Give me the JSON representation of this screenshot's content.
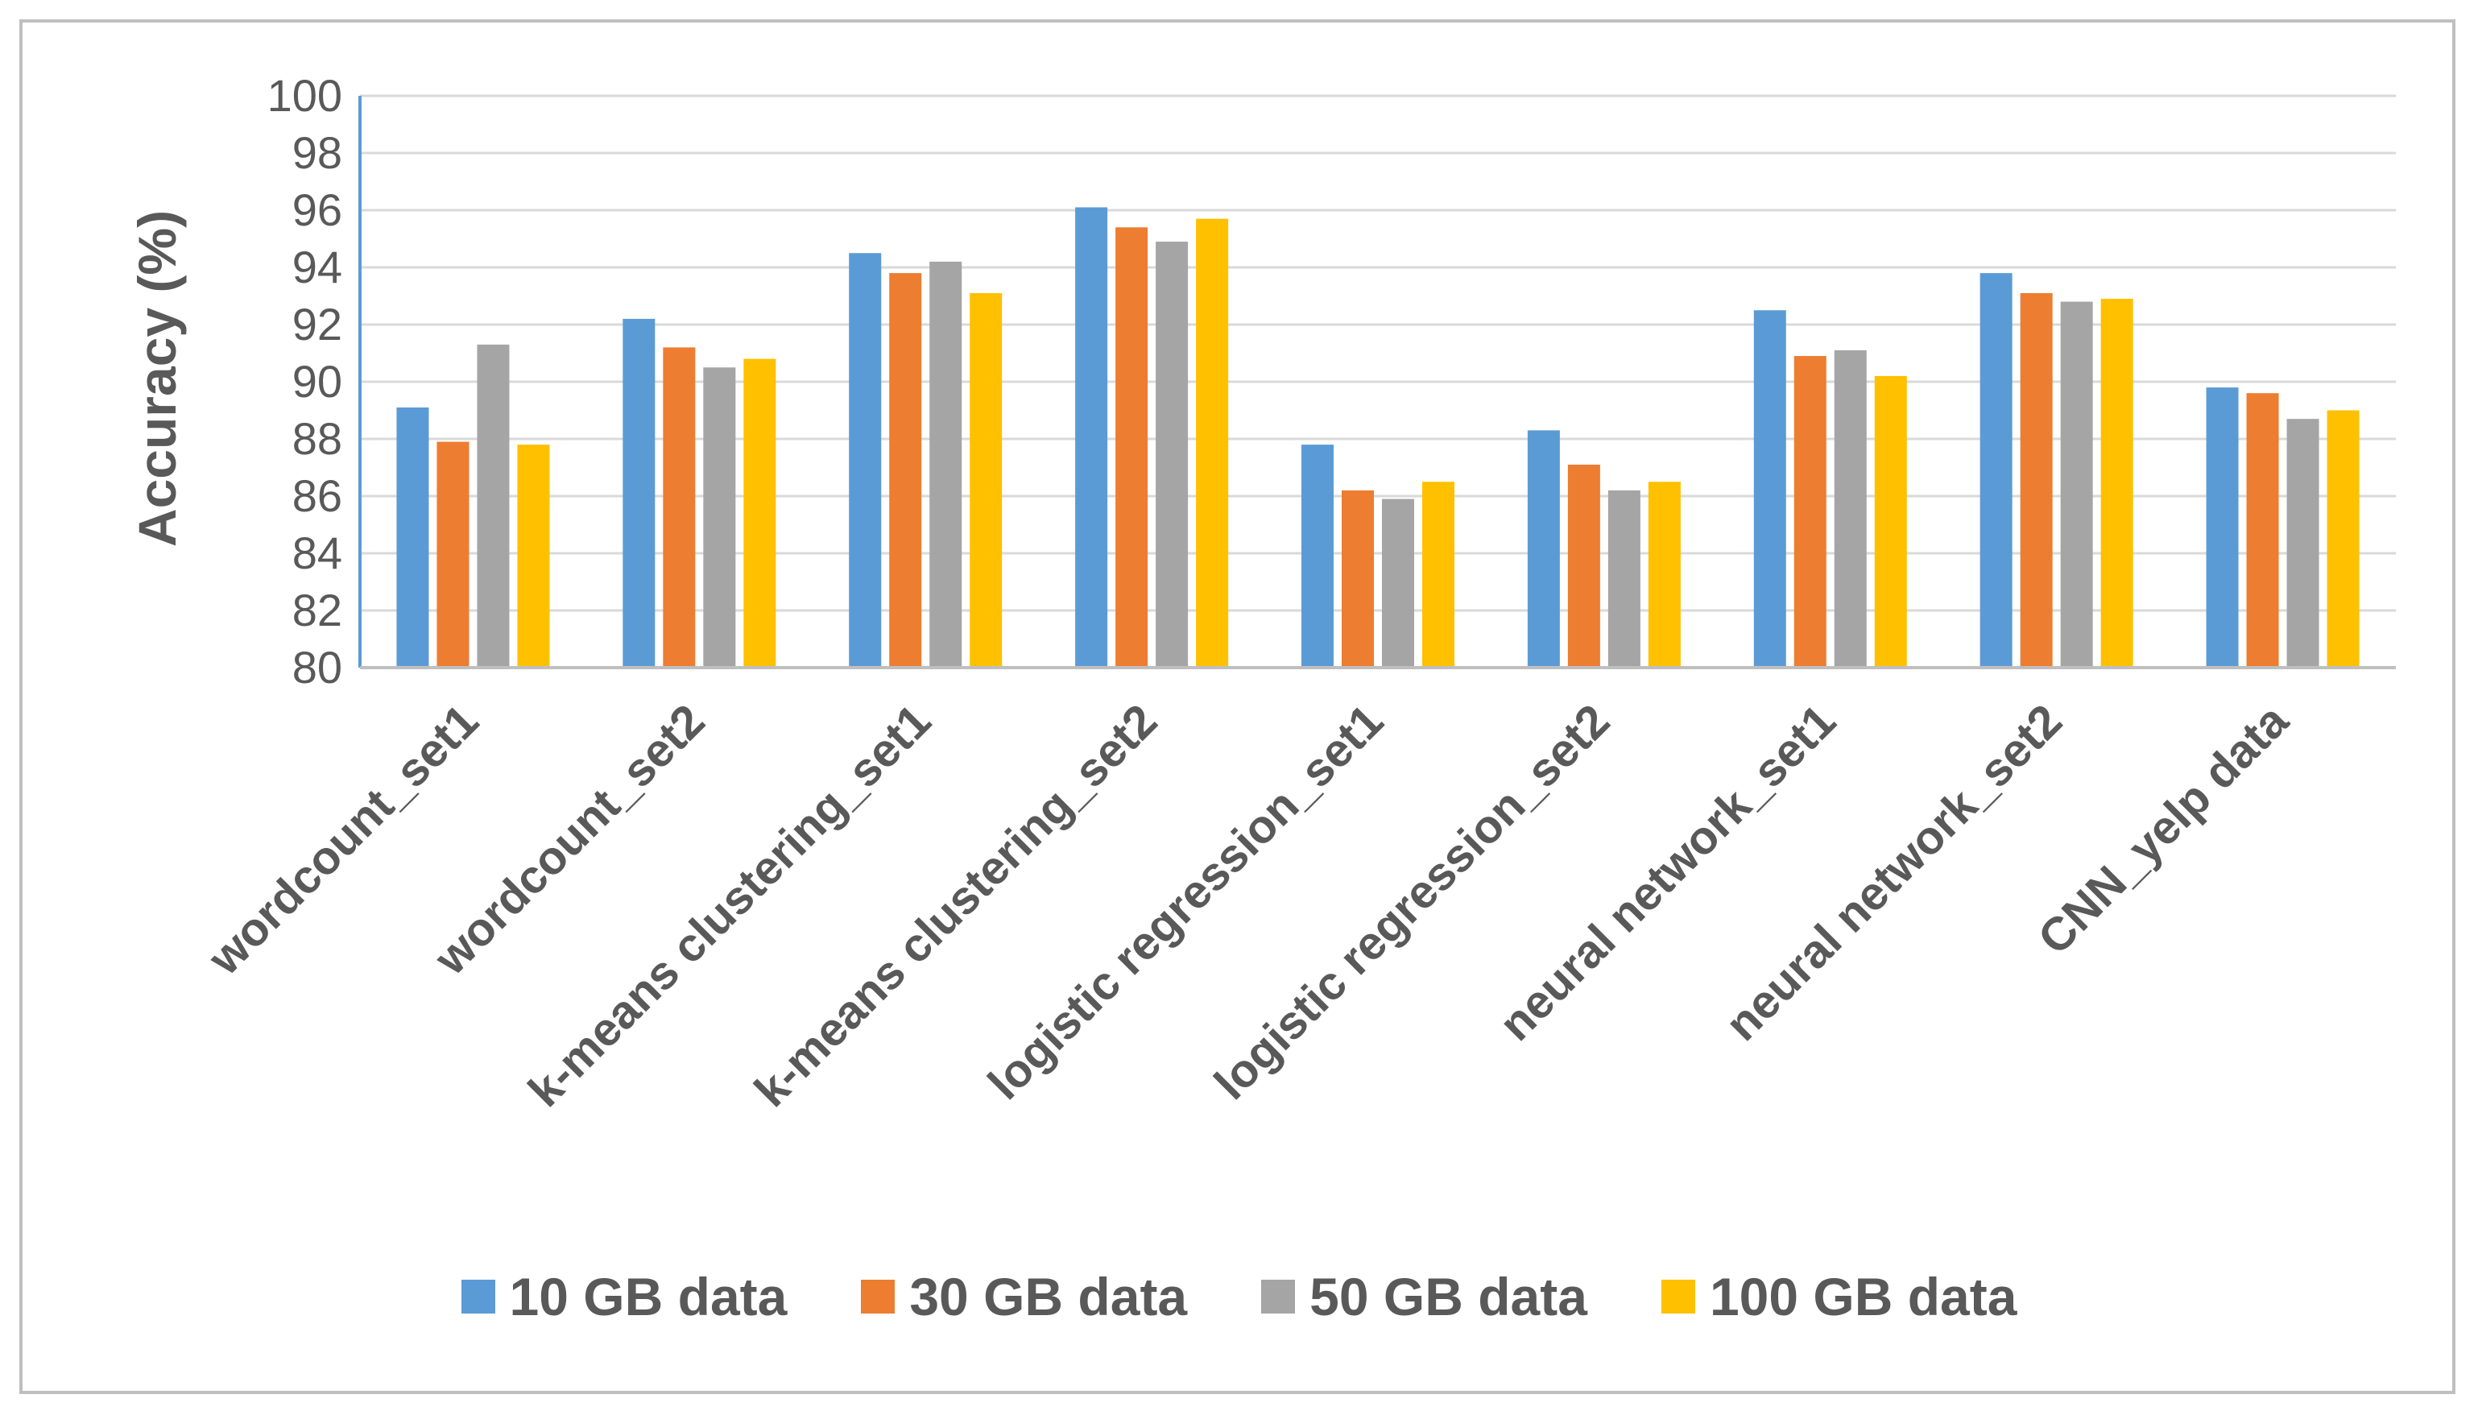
{
  "chart_data": {
    "type": "bar",
    "title": "",
    "xlabel": "",
    "ylabel": "Accuracy (%)",
    "ylim": [
      80,
      100
    ],
    "yticks": [
      80,
      82,
      84,
      86,
      88,
      90,
      92,
      94,
      96,
      98,
      100
    ],
    "grid": "horizontal",
    "legend_position": "bottom",
    "categories": [
      "wordcount_set1",
      "wordcount_set2",
      "k-means clustering_set1",
      "k-means clustering_set2",
      "logistic regression_set1",
      "logistic regression_set2",
      "neural network_set1",
      "neural network_set2",
      "CNN_yelp data"
    ],
    "series": [
      {
        "name": "10 GB data",
        "color": "#5b9bd5",
        "values": [
          89.1,
          92.2,
          94.5,
          96.1,
          87.8,
          88.3,
          92.5,
          93.8,
          89.8
        ]
      },
      {
        "name": "30 GB data",
        "color": "#ed7d31",
        "values": [
          87.9,
          91.2,
          93.8,
          95.4,
          86.2,
          87.1,
          90.9,
          93.1,
          89.6
        ]
      },
      {
        "name": "50 GB data",
        "color": "#a5a5a5",
        "values": [
          91.3,
          90.5,
          94.2,
          94.9,
          85.9,
          86.2,
          91.1,
          92.8,
          88.7
        ]
      },
      {
        "name": "100 GB data",
        "color": "#ffc000",
        "values": [
          87.8,
          90.8,
          93.1,
          95.7,
          86.5,
          86.5,
          90.2,
          92.9,
          89.0
        ]
      }
    ]
  }
}
